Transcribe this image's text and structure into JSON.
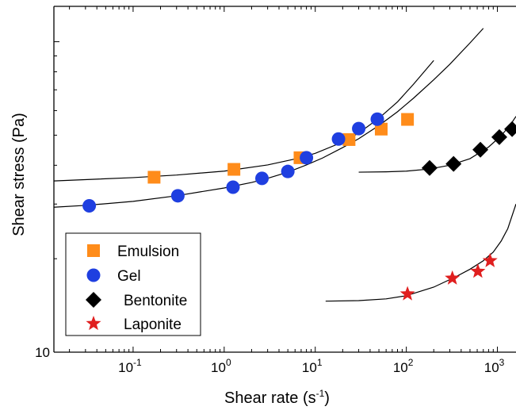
{
  "chart_data": {
    "type": "scatter",
    "xlabel": {
      "base": "Shear rate (s",
      "sup": "-1",
      "close": ")"
    },
    "ylabel": "Shear stress (Pa)",
    "xscale": "log",
    "yscale": "log",
    "xlim": [
      0.0135,
      1600
    ],
    "ylim": [
      10,
      130
    ],
    "x_ticks": [
      {
        "value": 0.1,
        "base": "10",
        "exp": "-1"
      },
      {
        "value": 1,
        "base": "10",
        "exp": "0"
      },
      {
        "value": 10,
        "base": "10",
        "exp": "1"
      },
      {
        "value": 100,
        "base": "10",
        "exp": "2"
      },
      {
        "value": 1000,
        "base": "10",
        "exp": "3"
      }
    ],
    "y_ticks": [
      {
        "value": 10,
        "label": "10"
      }
    ],
    "legend_position": "bottom-left",
    "series": [
      {
        "name": "Emulsion",
        "marker": "square",
        "color": "#ff8c1a",
        "x": [
          0.17,
          1.28,
          6.8,
          23.5,
          53,
          103
        ],
        "y": [
          36.6,
          38.8,
          42.3,
          48.4,
          52.3,
          56.2
        ],
        "fit": {
          "x": [
            0.0135,
            0.1,
            0.3,
            1,
            3,
            6,
            10,
            20,
            30,
            50,
            80,
            120,
            200
          ],
          "y": [
            35.6,
            36.5,
            37.2,
            38.3,
            40.1,
            41.9,
            43.7,
            47.5,
            50.8,
            56.7,
            64.0,
            73.0,
            87.0
          ]
        }
      },
      {
        "name": "Gel",
        "marker": "circle",
        "color": "#1f3fe0",
        "x": [
          0.033,
          0.31,
          1.25,
          2.6,
          5,
          8,
          18,
          30,
          48
        ],
        "y": [
          29.6,
          31.9,
          34.0,
          36.3,
          38.2,
          42.3,
          48.6,
          52.5,
          56.3
        ],
        "fit": {
          "x": [
            0.0135,
            0.03,
            0.1,
            0.3,
            1,
            2,
            3,
            5,
            8,
            12,
            20,
            30,
            50,
            80,
            120,
            200,
            300,
            500,
            700
          ],
          "y": [
            29.3,
            29.7,
            30.6,
            31.9,
            33.8,
            35.2,
            36.3,
            38.0,
            40.1,
            42.2,
            45.6,
            48.7,
            53.7,
            59.5,
            65.8,
            75.4,
            84.6,
            99.1,
            110.4
          ]
        }
      },
      {
        "name": "Bentonite",
        "marker": "diamond",
        "color": "#000000",
        "x": [
          180,
          330,
          650,
          1050,
          1450
        ],
        "y": [
          39.2,
          40.4,
          44.9,
          49.3,
          52.3
        ],
        "fit": {
          "x": [
            30,
            60,
            100,
            180,
            300,
            500,
            800,
            1100,
            1400,
            1600
          ],
          "y": [
            38.0,
            38.1,
            38.3,
            38.9,
            40.0,
            42.0,
            45.8,
            49.8,
            54.2,
            57.5
          ]
        }
      },
      {
        "name": "Laponite",
        "marker": "star",
        "color": "#e01f1f",
        "x": [
          103,
          320,
          610,
          830
        ],
        "y": [
          15.4,
          17.3,
          18.2,
          19.7
        ],
        "fit": {
          "x": [
            13,
            30,
            60,
            100,
            200,
            350,
            500,
            700,
            900,
            1100,
            1300,
            1600
          ],
          "y": [
            14.6,
            14.66,
            14.85,
            15.2,
            16.2,
            17.5,
            18.5,
            19.7,
            21.0,
            22.8,
            25.0,
            30.0
          ]
        }
      }
    ]
  }
}
